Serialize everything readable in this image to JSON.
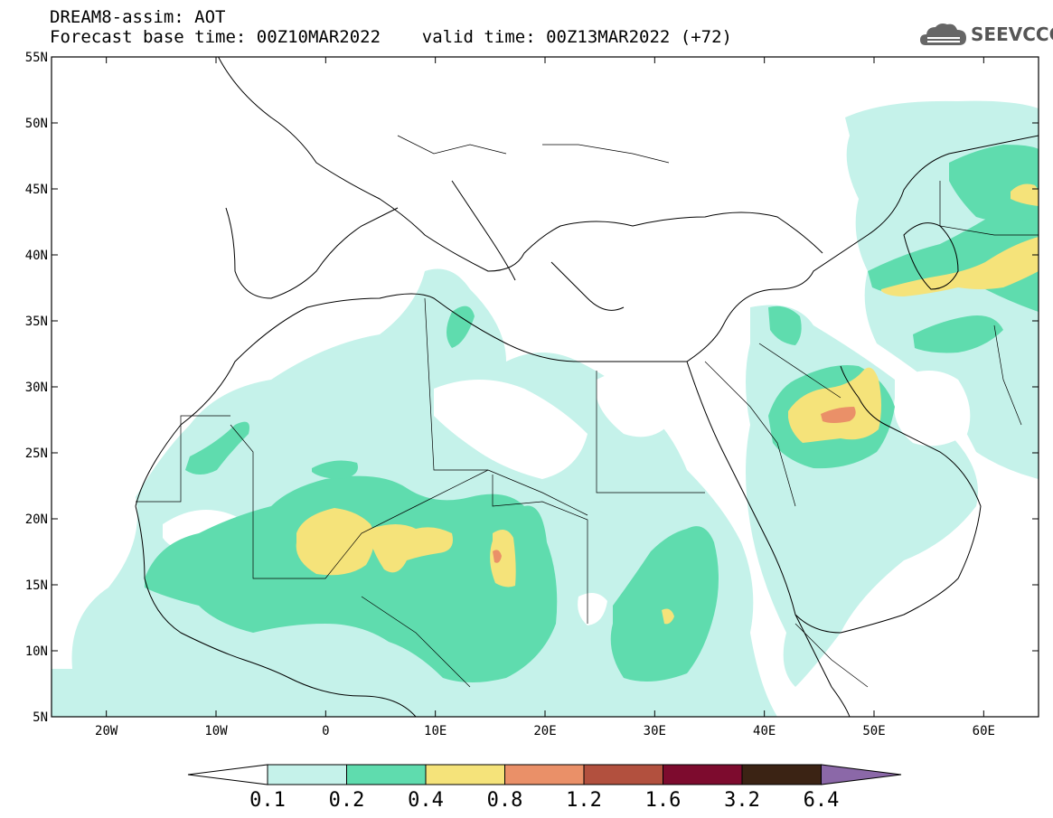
{
  "header": {
    "title": "DREAM8-assim: AOT",
    "subtitle": "Forecast base time: 00Z10MAR2022    valid time: 00Z13MAR2022 (+72)"
  },
  "logo": {
    "text": "SEEVCCC",
    "icon": "cloud-icon"
  },
  "map": {
    "lon_range": [
      -25,
      65
    ],
    "lat_range": [
      5,
      55
    ],
    "lon_ticks": [
      {
        "value": -20,
        "label": "20W"
      },
      {
        "value": -10,
        "label": "10W"
      },
      {
        "value": 0,
        "label": "0"
      },
      {
        "value": 10,
        "label": "10E"
      },
      {
        "value": 20,
        "label": "20E"
      },
      {
        "value": 30,
        "label": "30E"
      },
      {
        "value": 40,
        "label": "40E"
      },
      {
        "value": 50,
        "label": "50E"
      },
      {
        "value": 60,
        "label": "60E"
      }
    ],
    "lat_ticks": [
      {
        "value": 55,
        "label": "55N"
      },
      {
        "value": 50,
        "label": "50N"
      },
      {
        "value": 45,
        "label": "45N"
      },
      {
        "value": 40,
        "label": "40N"
      },
      {
        "value": 35,
        "label": "35N"
      },
      {
        "value": 30,
        "label": "30N"
      },
      {
        "value": 25,
        "label": "25N"
      },
      {
        "value": 20,
        "label": "20N"
      },
      {
        "value": 15,
        "label": "15N"
      },
      {
        "value": 10,
        "label": "10N"
      },
      {
        "value": 5,
        "label": "5N"
      }
    ]
  },
  "colorbar": {
    "levels": [
      "0.1",
      "0.2",
      "0.4",
      "0.8",
      "1.2",
      "1.6",
      "3.2",
      "6.4"
    ],
    "colors": {
      "under": "#ffffff",
      "c1": "#c5f2ea",
      "c2": "#5fdcae",
      "c3": "#f5e37a",
      "c4": "#ea9068",
      "c5": "#b2503e",
      "c6": "#7d0b2e",
      "c7": "#3b2314",
      "over": "#8b68a8"
    }
  }
}
